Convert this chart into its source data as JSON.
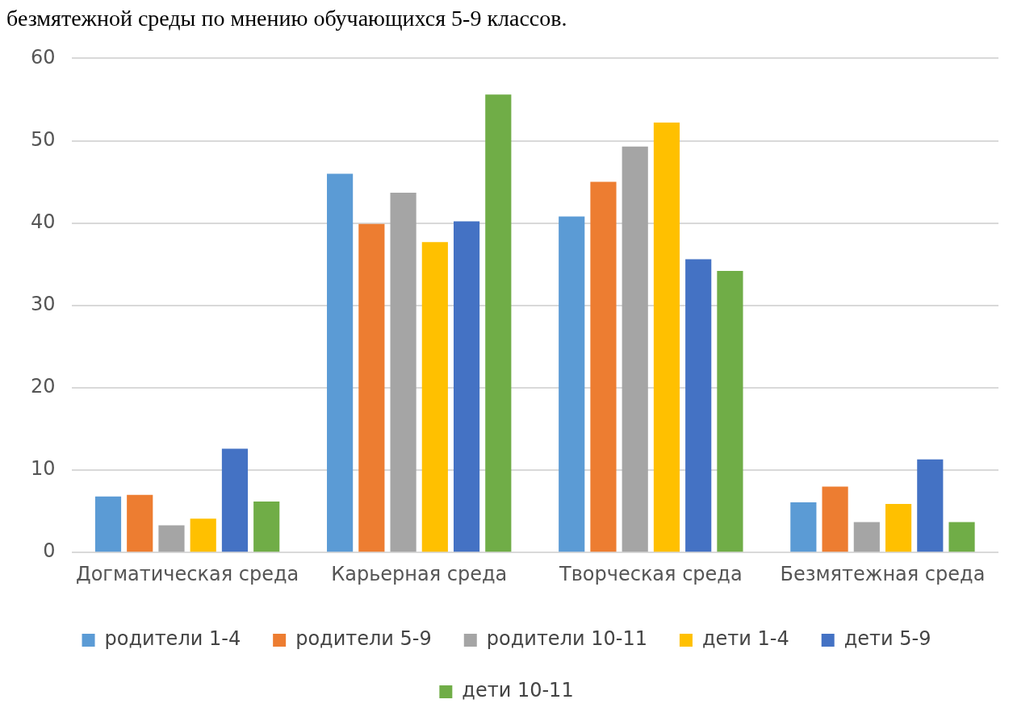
{
  "chart_data": {
    "type": "bar",
    "title": "безмятежной среды по мнению обучающихся 5-9 классов.",
    "categories": [
      "Догматическая среда",
      "Карьерная среда",
      "Творческая среда",
      "Безмятежная среда"
    ],
    "series": [
      {
        "name": "родители 1-4",
        "color": "#5b9bd5",
        "values": [
          6.8,
          46.0,
          40.8,
          6.1
        ]
      },
      {
        "name": "родители 5-9",
        "color": "#ed7d31",
        "values": [
          7.0,
          39.9,
          45.0,
          8.0
        ]
      },
      {
        "name": "родители 10-11",
        "color": "#a5a5a5",
        "values": [
          3.3,
          43.7,
          49.3,
          3.7
        ]
      },
      {
        "name": "дети 1-4",
        "color": "#ffc000",
        "values": [
          4.1,
          37.7,
          52.2,
          5.9
        ]
      },
      {
        "name": "дети 5-9",
        "color": "#4472c4",
        "values": [
          12.6,
          40.2,
          35.6,
          11.3
        ]
      },
      {
        "name": "дети 10-11",
        "color": "#70ad47",
        "values": [
          6.2,
          55.6,
          34.2,
          3.7
        ]
      }
    ],
    "ylim": [
      0,
      60
    ],
    "yticks": [
      0,
      10,
      20,
      30,
      40,
      50,
      60
    ],
    "grid": "y",
    "legend": "bottom"
  }
}
